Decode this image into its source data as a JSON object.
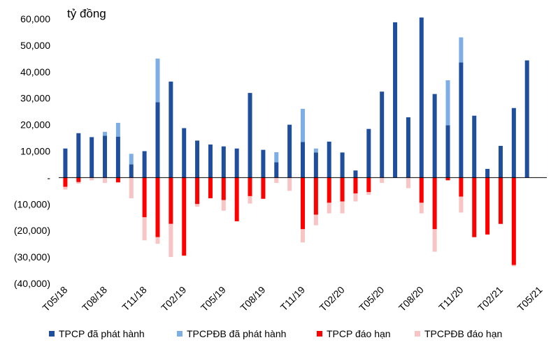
{
  "chart_data": {
    "type": "bar",
    "stacked": true,
    "unit_label": "tỷ đồng",
    "ylim": [
      -40000,
      60000
    ],
    "yticks": [
      60000,
      50000,
      40000,
      30000,
      20000,
      10000,
      0,
      -10000,
      -20000,
      -30000,
      -40000
    ],
    "ytick_labels": [
      "60,000",
      "50,000",
      "40,000",
      "30,000",
      "20,000",
      "10,000",
      "-",
      "(10,000)",
      "(20,000)",
      "(30,000)",
      "(40,000)"
    ],
    "categories": [
      "T05/18",
      "T06/18",
      "T07/18",
      "T08/18",
      "T09/18",
      "T10/18",
      "T11/18",
      "T12/18",
      "T01/19",
      "T02/19",
      "T03/19",
      "T04/19",
      "T05/19",
      "T06/19",
      "T07/19",
      "T08/19",
      "T09/19",
      "T10/19",
      "T11/19",
      "T12/19",
      "T01/20",
      "T02/20",
      "T03/20",
      "T04/20",
      "T05/20",
      "T06/20",
      "T07/20",
      "T08/20",
      "T09/20",
      "T10/20",
      "T11/20",
      "T12/20",
      "T01/21",
      "T02/21",
      "T03/21",
      "T04/21",
      "T05/21"
    ],
    "xtick_labels": [
      "T05/18",
      "T08/18",
      "T11/18",
      "T02/19",
      "T05/19",
      "T08/19",
      "T11/19",
      "T02/20",
      "T05/20",
      "T08/20",
      "T11/20",
      "T02/21",
      "T05/21"
    ],
    "series": [
      {
        "name": "TPCP đã phát hành",
        "color": "#1F4E9C",
        "values": [
          11000,
          16800,
          15300,
          15800,
          15500,
          5000,
          10000,
          28500,
          36300,
          18700,
          14000,
          12500,
          11800,
          11000,
          32000,
          10500,
          5800,
          20000,
          13500,
          9500,
          13600,
          9500,
          2700,
          18400,
          32500,
          58700,
          22800,
          60500,
          31600,
          19800,
          43500,
          23400,
          3300,
          12000,
          26300,
          44300,
          0
        ]
      },
      {
        "name": "TPCPĐB đã phát hành",
        "color": "#7EAEE6",
        "values": [
          0,
          0,
          0,
          1500,
          5200,
          4000,
          0,
          16500,
          0,
          0,
          0,
          0,
          0,
          0,
          0,
          0,
          3800,
          0,
          12500,
          1500,
          0,
          0,
          0,
          0,
          0,
          0,
          0,
          0,
          0,
          17000,
          9500,
          0,
          0,
          0,
          0,
          0,
          0
        ]
      },
      {
        "name": "TPCP đáo hạn",
        "color": "#FF0000",
        "values": [
          -3500,
          -1700,
          0,
          0,
          -1800,
          0,
          -15000,
          -22500,
          -17500,
          -29500,
          -10000,
          -7800,
          -8500,
          -16500,
          -7000,
          -8000,
          0,
          0,
          -19500,
          -14000,
          -9500,
          -9000,
          -6000,
          -5500,
          0,
          0,
          0,
          -9500,
          -19500,
          -1000,
          -7200,
          -22500,
          -21500,
          -17500,
          -33000,
          0,
          0
        ]
      },
      {
        "name": "TPCPĐB đáo hạn",
        "color": "#F8C4C4",
        "values": [
          -1000,
          -600,
          -1000,
          -2000,
          0,
          -7800,
          -8700,
          -2500,
          -12500,
          0,
          -1000,
          0,
          -4000,
          0,
          -2800,
          0,
          -2000,
          -5000,
          -5000,
          -4000,
          -4000,
          -4500,
          -3000,
          -1000,
          -2000,
          0,
          -4000,
          -4000,
          -8500,
          -200,
          -6000,
          0,
          0,
          0,
          -500,
          0,
          0
        ]
      }
    ],
    "legend": {
      "position": "bottom",
      "items": [
        "TPCP đã phát hành",
        "TPCPĐB đã phát hành",
        "TPCP đáo hạn",
        "TPCPĐB đáo hạn"
      ]
    }
  }
}
